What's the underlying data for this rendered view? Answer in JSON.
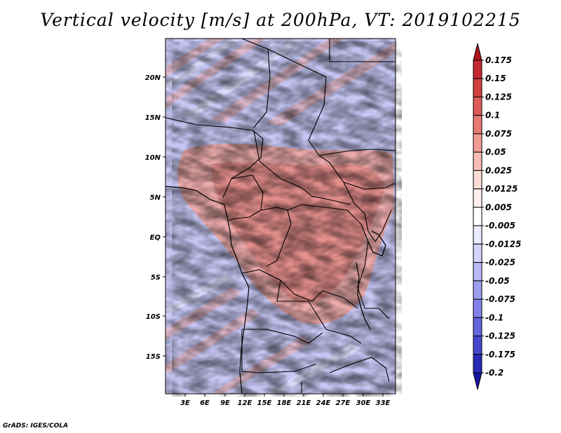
{
  "title": "Vertical velocity [m/s] at 200hPa, VT: 2019102215",
  "credit": "GrADS: IGES/COLA",
  "map": {
    "lat_labels": [
      "20N",
      "15N",
      "10N",
      "5N",
      "EQ",
      "5S",
      "10S",
      "15S"
    ],
    "lon_labels": [
      "3E",
      "6E",
      "9E",
      "12E",
      "15E",
      "18E",
      "21E",
      "24E",
      "27E",
      "30E",
      "33E"
    ]
  },
  "colorbar": {
    "labels": [
      "0.175",
      "0.15",
      "0.125",
      "0.1",
      "0.075",
      "0.05",
      "0.025",
      "0.0125",
      "0.005",
      "-0.005",
      "-0.0125",
      "-0.025",
      "-0.05",
      "-0.075",
      "-0.1",
      "-0.125",
      "-0.175",
      "-0.2"
    ],
    "colors": [
      "#b0141c",
      "#c42a2e",
      "#d43f3f",
      "#df5a56",
      "#e97a72",
      "#f29c94",
      "#f8bdb6",
      "#fcdcd7",
      "#fff0ee",
      "#ffffff",
      "#ececff",
      "#d4d4fb",
      "#b9b9f6",
      "#9d9df0",
      "#8282ea",
      "#6565e0",
      "#4646cf",
      "#2a2ab8",
      "#1515a0"
    ]
  }
}
